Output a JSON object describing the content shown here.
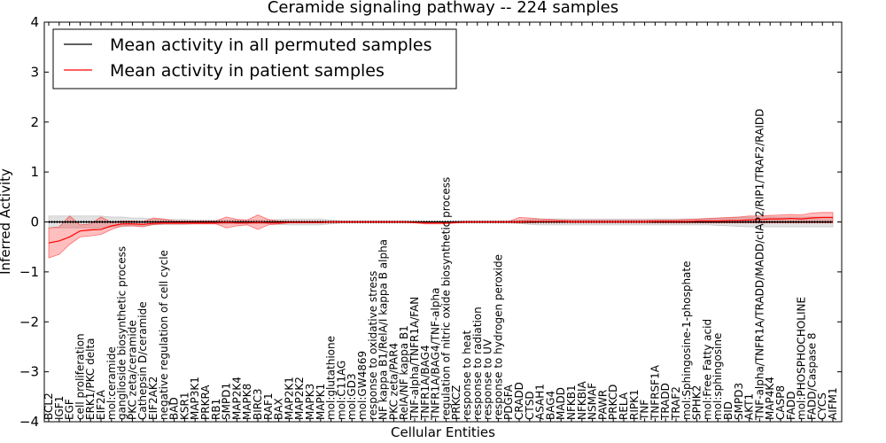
{
  "chart_data": {
    "type": "line",
    "title": "Ceramide signaling pathway -- 224 samples",
    "xlabel": "Cellular Entities",
    "ylabel": "Inferred Activity",
    "ylim": [
      -4,
      4
    ],
    "yticks": [
      -4,
      -3,
      -2,
      -1,
      0,
      1,
      2,
      3,
      4
    ],
    "grid": false,
    "legend_position": "top-left",
    "categories": [
      "BCL2",
      "IGF1",
      "EGF",
      "cell proliferation",
      "ERK1/PKC delta",
      "EIF2A",
      "mol:ceramide",
      "ganglioside biosynthetic process",
      "PKC zeta/ceramide",
      "Cathepsin D/ceramide",
      "EIF2AK2",
      "negative regulation of cell cycle",
      "BAD",
      "KSR1",
      "MAP3K1",
      "PRKRA",
      "RB1",
      "SMPD1",
      "MAP2K4",
      "MAPK8",
      "BIRC3",
      "RAF1",
      "BAX",
      "MAP2K1",
      "MAP2K2",
      "MAPK3",
      "MAPK1",
      "mol:glutathione",
      "mol:C11AG",
      "mol:GD3",
      "mol:GW4869",
      "response to oxidative stress",
      "NF kappa B1/RelA/I kappa B alpha",
      "PKC zeta/PAR4",
      "RelA/NF kappa B1",
      "TNF-alpha/TNFR1A/FAN",
      "TNFR1A/BAG4",
      "TNFR1A/BAG4/TNF-alpha",
      "regulation of nitric oxide biosynthetic process",
      "PRKCZ",
      "response to heat",
      "response to radiation",
      "response to UV",
      "response to hydrogen peroxide",
      "PDGFA",
      "CRADD",
      "CTSD",
      "ASAH1",
      "BAG4",
      "MADD",
      "NFKB1",
      "NFKBIA",
      "NSMAF",
      "PAWR",
      "PRKCD",
      "RELA",
      "RIPK1",
      "TNF",
      "TNFRSF1A",
      "TRADD",
      "TRAF2",
      "mol:Sphingosine-1-phosphate",
      "SPHK2",
      "mol:Free Fatty acid",
      "mol:sphingosine",
      "BID",
      "SMPD3",
      "AKT1",
      "TNF-alpha/TNFR1A/TRADD/MADD/cIAP2/RIP1/TRAF2/RAIDD",
      "MAP4K4",
      "CASP8",
      "FADD",
      "mol:PHOSPHOCHOLINE",
      "FADD/Caspase 8",
      "CYCS",
      "AIFM1"
    ],
    "series": [
      {
        "name": "Mean activity in all permuted samples",
        "color": "#000000",
        "values": [
          0.0,
          0.0,
          0.0,
          0.0,
          0.0,
          0.0,
          0.0,
          0.0,
          0.0,
          0.0,
          0.0,
          0.0,
          0.0,
          0.0,
          0.0,
          0.0,
          0.0,
          0.0,
          0.0,
          0.0,
          0.0,
          0.0,
          0.0,
          0.0,
          0.0,
          0.0,
          0.0,
          0.0,
          0.0,
          0.0,
          0.0,
          0.0,
          0.0,
          0.0,
          0.0,
          0.0,
          0.0,
          0.0,
          0.0,
          0.0,
          0.0,
          0.0,
          0.0,
          0.0,
          0.0,
          0.0,
          0.0,
          0.0,
          0.0,
          0.0,
          0.0,
          0.0,
          0.0,
          0.0,
          0.0,
          0.0,
          0.0,
          0.0,
          0.0,
          0.0,
          0.0,
          0.0,
          0.0,
          0.0,
          0.0,
          0.0,
          0.0,
          0.0,
          0.0,
          0.0,
          0.0,
          0.0,
          0.0,
          0.0,
          0.0,
          0.0
        ],
        "band_lower": [
          -0.12,
          -0.12,
          -0.12,
          -0.12,
          -0.12,
          -0.12,
          -0.1,
          -0.1,
          -0.08,
          -0.08,
          -0.06,
          -0.05,
          -0.05,
          -0.05,
          -0.04,
          -0.04,
          -0.04,
          -0.04,
          -0.04,
          -0.04,
          -0.04,
          -0.04,
          -0.05,
          -0.06,
          -0.06,
          -0.06,
          -0.06,
          -0.04,
          -0.02,
          -0.02,
          -0.02,
          -0.02,
          -0.02,
          -0.02,
          -0.02,
          -0.02,
          -0.02,
          -0.02,
          -0.02,
          -0.02,
          -0.02,
          -0.02,
          -0.02,
          -0.02,
          -0.02,
          -0.03,
          -0.05,
          -0.06,
          -0.06,
          -0.06,
          -0.06,
          -0.06,
          -0.06,
          -0.06,
          -0.06,
          -0.06,
          -0.06,
          -0.06,
          -0.06,
          -0.06,
          -0.06,
          -0.06,
          -0.06,
          -0.06,
          -0.07,
          -0.08,
          -0.09,
          -0.1,
          -0.1,
          -0.1,
          -0.1,
          -0.1,
          -0.1,
          -0.1,
          -0.1,
          -0.1
        ],
        "band_upper": [
          0.12,
          0.12,
          0.12,
          0.12,
          0.12,
          0.12,
          0.1,
          0.1,
          0.08,
          0.08,
          0.06,
          0.05,
          0.05,
          0.05,
          0.04,
          0.04,
          0.04,
          0.04,
          0.04,
          0.04,
          0.04,
          0.04,
          0.05,
          0.06,
          0.06,
          0.06,
          0.06,
          0.04,
          0.02,
          0.02,
          0.02,
          0.02,
          0.02,
          0.02,
          0.02,
          0.02,
          0.02,
          0.02,
          0.02,
          0.02,
          0.02,
          0.02,
          0.02,
          0.02,
          0.02,
          0.03,
          0.05,
          0.06,
          0.06,
          0.06,
          0.06,
          0.06,
          0.06,
          0.06,
          0.06,
          0.06,
          0.06,
          0.06,
          0.06,
          0.06,
          0.06,
          0.06,
          0.06,
          0.06,
          0.07,
          0.08,
          0.09,
          0.1,
          0.1,
          0.1,
          0.1,
          0.1,
          0.1,
          0.1,
          0.1,
          0.1
        ]
      },
      {
        "name": "Mean activity in patient samples",
        "color": "#ff0000",
        "values": [
          -0.42,
          -0.38,
          -0.3,
          -0.18,
          -0.16,
          -0.15,
          -0.08,
          -0.04,
          -0.04,
          -0.05,
          -0.03,
          -0.02,
          -0.02,
          -0.02,
          -0.02,
          -0.02,
          -0.02,
          -0.01,
          -0.02,
          -0.02,
          -0.01,
          -0.02,
          -0.02,
          -0.01,
          -0.01,
          -0.01,
          -0.01,
          0.0,
          0.0,
          0.0,
          0.0,
          0.0,
          0.0,
          0.0,
          0.0,
          -0.01,
          -0.02,
          -0.02,
          -0.02,
          -0.01,
          0.0,
          0.0,
          0.0,
          0.0,
          0.0,
          0.0,
          0.01,
          0.01,
          0.01,
          0.01,
          0.0,
          0.0,
          0.0,
          0.0,
          0.0,
          0.0,
          0.0,
          0.0,
          0.01,
          0.01,
          0.01,
          0.01,
          0.02,
          0.02,
          0.02,
          0.03,
          0.03,
          0.04,
          0.05,
          0.06,
          0.06,
          0.07,
          0.06,
          0.08,
          0.09,
          0.09
        ],
        "band_lower": [
          -0.72,
          -0.65,
          -0.45,
          -0.3,
          -0.28,
          -0.25,
          -0.15,
          -0.08,
          -0.08,
          -0.1,
          -0.05,
          -0.04,
          -0.04,
          -0.04,
          -0.04,
          -0.04,
          -0.04,
          -0.12,
          -0.08,
          -0.06,
          -0.15,
          -0.06,
          -0.04,
          -0.02,
          -0.02,
          -0.02,
          -0.02,
          -0.01,
          -0.01,
          -0.01,
          -0.01,
          -0.01,
          -0.01,
          -0.01,
          -0.01,
          -0.02,
          -0.04,
          -0.04,
          -0.04,
          -0.02,
          -0.01,
          -0.01,
          -0.01,
          -0.01,
          -0.01,
          -0.02,
          -0.02,
          -0.01,
          -0.01,
          -0.01,
          -0.01,
          -0.01,
          -0.01,
          -0.01,
          -0.01,
          -0.01,
          -0.01,
          -0.01,
          -0.02,
          -0.02,
          -0.02,
          -0.02,
          -0.02,
          -0.02,
          -0.02,
          -0.02,
          -0.02,
          -0.02,
          -0.02,
          -0.02,
          -0.02,
          -0.02,
          -0.02,
          -0.02,
          -0.02,
          -0.02
        ],
        "band_upper": [
          -0.12,
          -0.1,
          0.12,
          -0.06,
          -0.04,
          0.1,
          -0.01,
          0.02,
          0.02,
          0.0,
          0.08,
          0.06,
          0.02,
          0.02,
          0.02,
          0.02,
          0.02,
          0.1,
          0.05,
          0.04,
          0.14,
          0.05,
          0.02,
          0.01,
          0.01,
          0.01,
          0.01,
          0.01,
          0.01,
          0.01,
          0.01,
          0.01,
          0.01,
          0.01,
          0.01,
          0.0,
          0.0,
          0.0,
          0.0,
          0.0,
          0.01,
          0.01,
          0.01,
          0.01,
          0.01,
          0.09,
          0.08,
          0.06,
          0.05,
          0.04,
          0.03,
          0.03,
          0.03,
          0.03,
          0.03,
          0.03,
          0.03,
          0.03,
          0.04,
          0.04,
          0.04,
          0.05,
          0.06,
          0.07,
          0.08,
          0.09,
          0.1,
          0.12,
          0.12,
          0.13,
          0.14,
          0.15,
          0.14,
          0.18,
          0.19,
          0.19
        ]
      }
    ]
  }
}
